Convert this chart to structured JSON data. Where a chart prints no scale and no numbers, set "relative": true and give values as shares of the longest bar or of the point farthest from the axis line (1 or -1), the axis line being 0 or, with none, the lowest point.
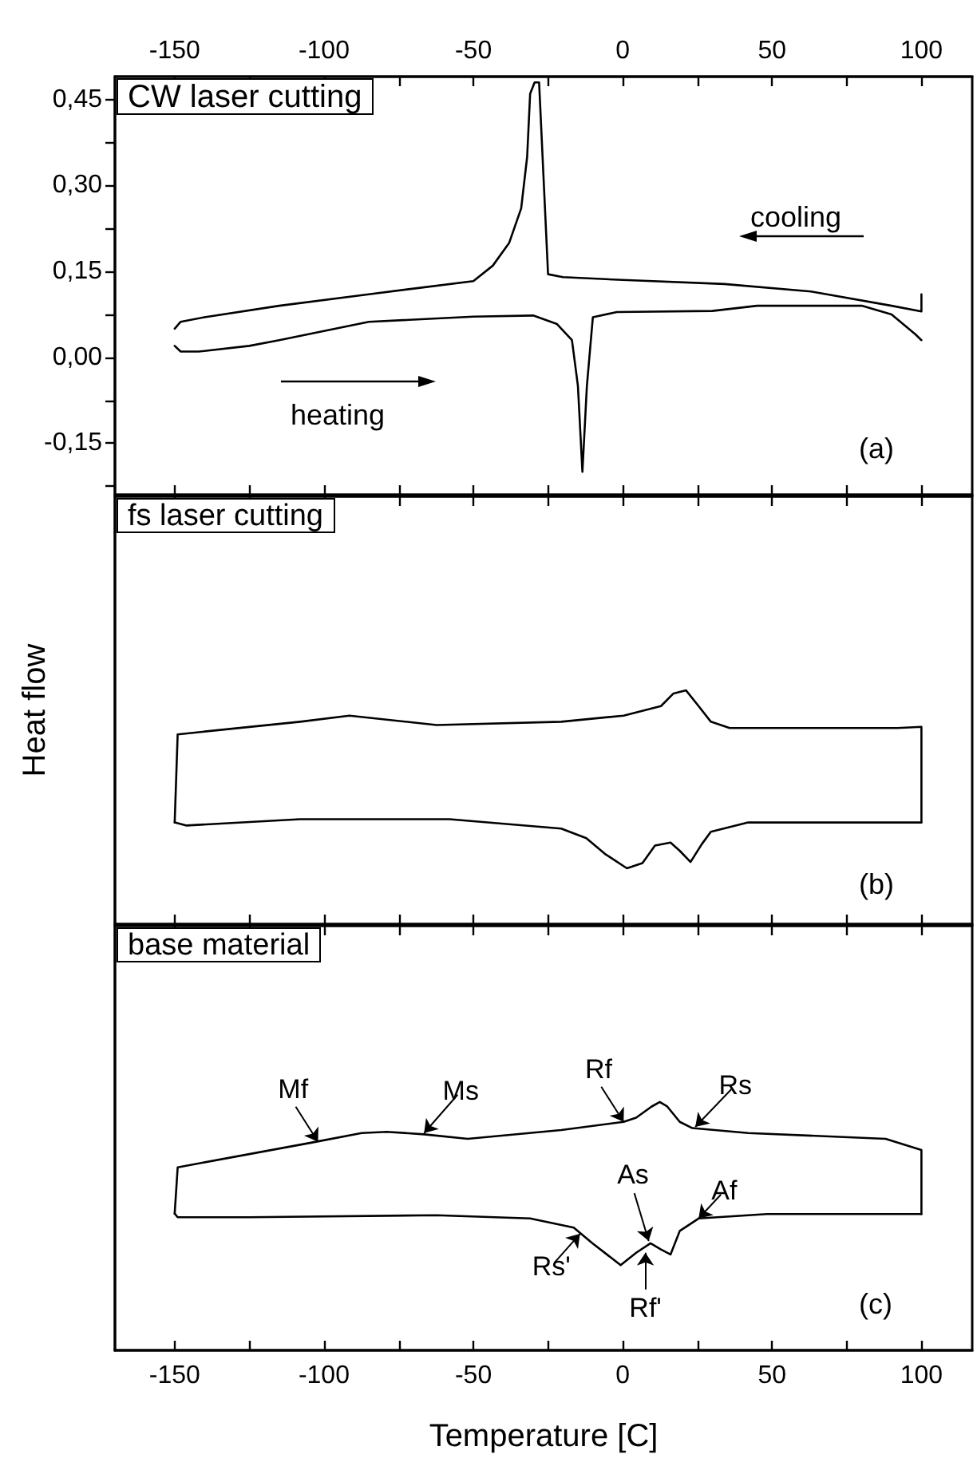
{
  "chart_data": [
    {
      "type": "line",
      "title": "CW laser cutting",
      "xlim": [
        -170,
        117
      ],
      "xticks": [
        -150,
        {
          "value": -125,
          "label": null
        },
        -100,
        {
          "value": -75,
          "label": null
        },
        -50,
        {
          "value": -25,
          "label": null
        },
        0,
        {
          "value": 25,
          "label": null
        },
        50,
        {
          "value": 75,
          "label": null
        },
        100
      ],
      "ylim": [
        -0.24,
        0.49
      ],
      "yticks": [
        {
          "value": -0.225,
          "label": null
        },
        {
          "value": -0.15,
          "label": "-0,15"
        },
        {
          "value": -0.075,
          "label": null
        },
        {
          "value": 0,
          "label": "0,00"
        },
        {
          "value": 0.075,
          "label": null
        },
        {
          "value": 0.15,
          "label": "0,15"
        },
        {
          "value": 0.225,
          "label": null
        },
        {
          "value": 0.3,
          "label": "0,30"
        },
        {
          "value": 0.375,
          "label": null
        },
        {
          "value": 0.45,
          "label": "0,45"
        }
      ],
      "annotations": [
        "cooling",
        "heating",
        "(a)"
      ],
      "series": [
        {
          "color": "#000000",
          "x": [
            100,
            100,
            90,
            63,
            34,
            0,
            -20,
            -25,
            -28,
            -29.5,
            -31,
            -32,
            -34,
            -38,
            -43.5,
            -50,
            -70,
            -85,
            -115,
            -140,
            -148,
            -150
          ],
          "values": [
            0.11,
            0.08,
            0.09,
            0.115,
            0.128,
            0.135,
            0.14,
            0.145,
            0.48,
            0.48,
            0.46,
            0.35,
            0.26,
            0.2,
            0.16,
            0.133,
            0.12,
            0.11,
            0.09,
            0.07,
            0.062,
            0.05
          ]
        },
        {
          "color": "#000000",
          "x": [
            -150,
            -148,
            -142,
            -125,
            -115,
            -85,
            -50,
            -30,
            -22,
            -17,
            -15,
            -13.5,
            -12,
            -10,
            -2,
            30,
            45,
            80,
            90,
            98,
            100
          ],
          "values": [
            0.02,
            0.01,
            0.01,
            0.02,
            0.03,
            0.062,
            0.071,
            0.073,
            0.058,
            0.03,
            -0.05,
            -0.2,
            -0.05,
            0.07,
            0.079,
            0.081,
            0.09,
            0.09,
            0.075,
            0.04,
            0.03
          ]
        }
      ]
    },
    {
      "type": "line",
      "title": "fs laser cutting",
      "ylabel": "Heat flow",
      "relative": true,
      "tick_labels": false,
      "xlim": [
        -170,
        117
      ],
      "xticks": [
        -150,
        {
          "value": -125,
          "label": null
        },
        -100,
        {
          "value": -75,
          "label": null
        },
        -50,
        {
          "value": -25,
          "label": null
        },
        0,
        {
          "value": 25,
          "label": null
        },
        50,
        {
          "value": 75,
          "label": null
        },
        100
      ],
      "annotations": [
        "(b)"
      ],
      "series": [
        {
          "color": "#000000",
          "x": [
            100,
            100,
            92,
            35.8,
            29.5,
            25.4,
            21.2,
            17,
            12.8,
            0.3,
            -20.6,
            -62.3,
            -91.5,
            -108,
            -149,
            -150
          ],
          "values": [
            0.435,
            0.844,
            0.839,
            0.839,
            0.866,
            0.933,
            1,
            0.987,
            0.933,
            0.892,
            0.866,
            0.852,
            0.892,
            0.866,
            0.812,
            0.435
          ]
        },
        {
          "color": "#000000",
          "x": [
            -150,
            -146,
            -108,
            -58,
            -20.6,
            -12.2,
            -6,
            1.4,
            6.6,
            10.8,
            16,
            19,
            22.7,
            26.4,
            29.5,
            42,
            100
          ],
          "values": [
            0.435,
            0.422,
            0.449,
            0.449,
            0.409,
            0.368,
            0.301,
            0.239,
            0.261,
            0.336,
            0.349,
            0.315,
            0.266,
            0.341,
            0.395,
            0.435,
            0.435
          ]
        }
      ]
    },
    {
      "type": "line",
      "title": "base material",
      "xlabel": "Temperature [C]",
      "relative": true,
      "xlim": [
        -170,
        117
      ],
      "xticks": [
        -150,
        {
          "value": -125,
          "label": null
        },
        -100,
        {
          "value": -75,
          "label": null
        },
        -50,
        {
          "value": -25,
          "label": null
        },
        0,
        {
          "value": 25,
          "label": null
        },
        50,
        {
          "value": 75,
          "label": null
        },
        100
      ],
      "annotations": [
        {
          "text": "Mf",
          "x": -102,
          "y": 0.84
        },
        {
          "text": "Ms",
          "x": -66.5,
          "y": 0.875
        },
        {
          "text": "Rf",
          "x": 0.3,
          "y": 0.92
        },
        {
          "text": "Rs",
          "x": 24.3,
          "y": 0.9
        },
        {
          "text": "As",
          "x": 8.7,
          "y": 0.44
        },
        {
          "text": "Af",
          "x": 25.4,
          "y": 0.531
        },
        {
          "text": "Rs'",
          "x": -14.3,
          "y": 0.469
        },
        {
          "text": "Rf'",
          "x": 7.6,
          "y": 0.393
        },
        "(c)"
      ],
      "series": [
        {
          "color": "#000000",
          "x": [
            100,
            100,
            88,
            42,
            23.3,
            19.1,
            14.9,
            12.4,
            9.7,
            4.5,
            0.3,
            -20.6,
            -51.9,
            -66.5,
            -79,
            -87.4,
            -104,
            -149,
            -150
          ],
          "values": [
            0.549,
            0.807,
            0.852,
            0.875,
            0.895,
            0.92,
            0.982,
            1,
            0.982,
            0.937,
            0.92,
            0.887,
            0.852,
            0.87,
            0.88,
            0.875,
            0.837,
            0.737,
            0.551
          ]
        },
        {
          "color": "#000000",
          "x": [
            -150,
            -149,
            -125,
            -62.3,
            -31,
            -16.4,
            -10.1,
            -0.7,
            4.5,
            9.3,
            12.8,
            16,
            19.1,
            25.4,
            48.3,
            100
          ],
          "values": [
            0.551,
            0.536,
            0.536,
            0.544,
            0.531,
            0.494,
            0.431,
            0.343,
            0.393,
            0.431,
            0.406,
            0.386,
            0.481,
            0.531,
            0.549,
            0.549
          ]
        }
      ]
    }
  ]
}
